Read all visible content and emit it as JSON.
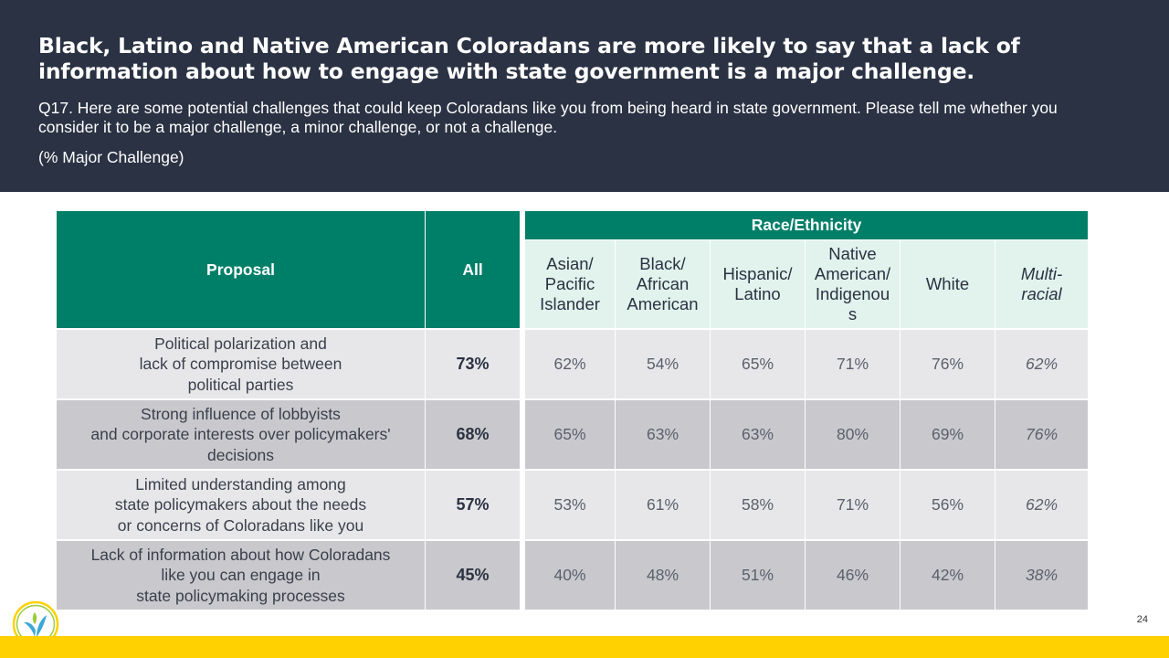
{
  "header": {
    "title": "Black, Latino and Native American Coloradans are more likely to say that a lack of information about how to engage with state government is a major challenge.",
    "question": "Q17. Here are some potential challenges that could keep Coloradans like you from being heard in state government. Please tell me whether you consider it to be a major challenge, a minor challenge, or not a challenge.",
    "note": "(% Major Challenge)"
  },
  "table": {
    "col_proposal": "Proposal",
    "col_all": "All",
    "group_label": "Race/Ethnicity",
    "subheads": [
      [
        "Asian/",
        "Pacific",
        "Islander"
      ],
      [
        "Black/",
        "African",
        "American"
      ],
      [
        "Hispanic/",
        "Latino"
      ],
      [
        "Native",
        "American/",
        "Indigenou",
        "s"
      ],
      [
        "White"
      ],
      [
        "Multi-",
        "racial"
      ]
    ],
    "rows": [
      {
        "proposal": [
          "Political polarization and",
          "lack of compromise between",
          "political parties"
        ],
        "all": "73%",
        "values": [
          "62%",
          "54%",
          "65%",
          "71%",
          "76%",
          "62%"
        ]
      },
      {
        "proposal": [
          "Strong influence of lobbyists",
          "and corporate interests over policymakers'",
          "decisions"
        ],
        "all": "68%",
        "values": [
          "65%",
          "63%",
          "63%",
          "80%",
          "69%",
          "76%"
        ]
      },
      {
        "proposal": [
          "Limited understanding among",
          "state policymakers about the needs",
          "or concerns of Coloradans like you"
        ],
        "all": "57%",
        "values": [
          "53%",
          "61%",
          "58%",
          "71%",
          "56%",
          "62%"
        ]
      },
      {
        "proposal": [
          "Lack of information about how Coloradans",
          "like you can engage in",
          "state policymaking processes"
        ],
        "all": "45%",
        "values": [
          "40%",
          "48%",
          "51%",
          "46%",
          "42%",
          "38%"
        ]
      }
    ]
  },
  "footer": {
    "page_number": "24",
    "logo_icon": "leaf-logo-icon",
    "accent_color": "#ffd100",
    "header_color": "#2a3243",
    "table_green": "#007f68"
  }
}
